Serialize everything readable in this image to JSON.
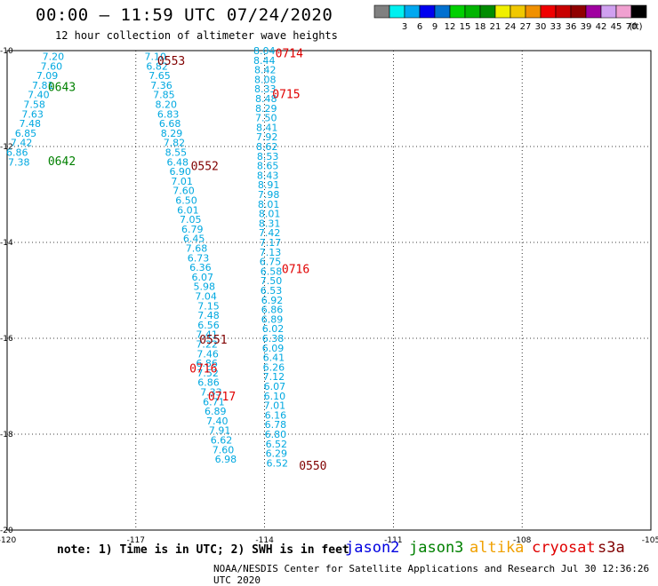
{
  "header": {
    "title": "00:00 – 11:59 UTC 07/24/2020",
    "subtitle": "12 hour collection of altimeter wave heights"
  },
  "legend": {
    "unit": "(ft)",
    "scale": [
      {
        "label": "",
        "color": "#808080"
      },
      {
        "label": "3",
        "color": "#00f0f0"
      },
      {
        "label": "6",
        "color": "#00a8f0"
      },
      {
        "label": "9",
        "color": "#0000f0"
      },
      {
        "label": "12",
        "color": "#0070d0"
      },
      {
        "label": "15",
        "color": "#00d000"
      },
      {
        "label": "18",
        "color": "#00b400"
      },
      {
        "label": "21",
        "color": "#008c00"
      },
      {
        "label": "24",
        "color": "#f0f000"
      },
      {
        "label": "27",
        "color": "#f0c800"
      },
      {
        "label": "30",
        "color": "#f09000"
      },
      {
        "label": "33",
        "color": "#f00000"
      },
      {
        "label": "36",
        "color": "#c80000"
      },
      {
        "label": "39",
        "color": "#900000"
      },
      {
        "label": "42",
        "color": "#a000a0"
      },
      {
        "label": "45",
        "color": "#d0a0f0"
      },
      {
        "label": "70",
        "color": "#f0a0d0"
      },
      {
        "label": "",
        "color": "#000000"
      }
    ]
  },
  "map": {
    "lon_range": [
      -120,
      -105
    ],
    "lat_range": [
      -20,
      -10
    ],
    "x_ticks": [
      {
        "value": -120,
        "label": "-120"
      },
      {
        "value": -117,
        "label": "-117"
      },
      {
        "value": -114,
        "label": "-114"
      },
      {
        "value": -111,
        "label": "-111"
      },
      {
        "value": -108,
        "label": "-108"
      },
      {
        "value": -105,
        "label": "-105"
      }
    ],
    "y_ticks": [
      {
        "value": -10,
        "label": "-10"
      },
      {
        "value": -12,
        "label": "-12"
      },
      {
        "value": -14,
        "label": "-14"
      },
      {
        "value": -16,
        "label": "-16"
      },
      {
        "value": -18,
        "label": "-18"
      },
      {
        "value": -20,
        "label": "-20"
      }
    ],
    "obs_color": "#00a8e0",
    "time_colors": {
      "cryosat": "#e00000",
      "s3a": "#800000",
      "jason3": "#008000"
    },
    "observations": [
      {
        "lon": -119.18,
        "lat": -10.12,
        "value": "7.20"
      },
      {
        "lon": -119.22,
        "lat": -10.32,
        "value": "7.60"
      },
      {
        "lon": -119.32,
        "lat": -10.52,
        "value": "7.09"
      },
      {
        "lon": -119.42,
        "lat": -10.72,
        "value": "7.81"
      },
      {
        "lon": -119.52,
        "lat": -10.92,
        "value": "7.40"
      },
      {
        "lon": -119.62,
        "lat": -11.12,
        "value": "7.58"
      },
      {
        "lon": -119.66,
        "lat": -11.32,
        "value": "7.63"
      },
      {
        "lon": -119.72,
        "lat": -11.52,
        "value": "7.48"
      },
      {
        "lon": -119.82,
        "lat": -11.72,
        "value": "6.85"
      },
      {
        "lon": -119.92,
        "lat": -11.92,
        "value": "7.42"
      },
      {
        "lon": -120.02,
        "lat": -12.12,
        "value": "6.86"
      },
      {
        "lon": -119.98,
        "lat": -12.32,
        "value": "7.38"
      },
      {
        "lon": -116.8,
        "lat": -10.12,
        "value": "7.10"
      },
      {
        "lon": -116.76,
        "lat": -10.32,
        "value": "6.82"
      },
      {
        "lon": -116.7,
        "lat": -10.52,
        "value": "7.65"
      },
      {
        "lon": -116.66,
        "lat": -10.72,
        "value": "7.36"
      },
      {
        "lon": -116.6,
        "lat": -10.92,
        "value": "7.85"
      },
      {
        "lon": -116.55,
        "lat": -11.12,
        "value": "8.20"
      },
      {
        "lon": -116.5,
        "lat": -11.32,
        "value": "6.83"
      },
      {
        "lon": -116.46,
        "lat": -11.52,
        "value": "6.68"
      },
      {
        "lon": -116.42,
        "lat": -11.72,
        "value": "8.29"
      },
      {
        "lon": -116.36,
        "lat": -11.92,
        "value": "7.82"
      },
      {
        "lon": -116.32,
        "lat": -12.12,
        "value": "8.55"
      },
      {
        "lon": -116.28,
        "lat": -12.32,
        "value": "6.48"
      },
      {
        "lon": -116.22,
        "lat": -12.52,
        "value": "6.90"
      },
      {
        "lon": -116.18,
        "lat": -12.72,
        "value": "7.01"
      },
      {
        "lon": -116.14,
        "lat": -12.92,
        "value": "7.60"
      },
      {
        "lon": -116.08,
        "lat": -13.12,
        "value": "6.50"
      },
      {
        "lon": -116.04,
        "lat": -13.32,
        "value": "6.01"
      },
      {
        "lon": -115.98,
        "lat": -13.52,
        "value": "7.05"
      },
      {
        "lon": -115.94,
        "lat": -13.72,
        "value": "6.79"
      },
      {
        "lon": -115.9,
        "lat": -13.92,
        "value": "6.45"
      },
      {
        "lon": -115.84,
        "lat": -14.12,
        "value": "7.68"
      },
      {
        "lon": -115.8,
        "lat": -14.32,
        "value": "6.73"
      },
      {
        "lon": -115.75,
        "lat": -14.52,
        "value": "6.36"
      },
      {
        "lon": -115.7,
        "lat": -14.72,
        "value": "6.07"
      },
      {
        "lon": -115.66,
        "lat": -14.92,
        "value": "5.98"
      },
      {
        "lon": -115.62,
        "lat": -15.12,
        "value": "7.04"
      },
      {
        "lon": -115.56,
        "lat": -15.32,
        "value": "7.15"
      },
      {
        "lon": -115.56,
        "lat": -15.52,
        "value": "7.48"
      },
      {
        "lon": -115.56,
        "lat": -15.72,
        "value": "6.56"
      },
      {
        "lon": -115.6,
        "lat": -15.92,
        "value": "7.41"
      },
      {
        "lon": -115.6,
        "lat": -16.12,
        "value": "7.22"
      },
      {
        "lon": -115.58,
        "lat": -16.32,
        "value": "7.46"
      },
      {
        "lon": -115.6,
        "lat": -16.52,
        "value": "6.86"
      },
      {
        "lon": -115.58,
        "lat": -16.72,
        "value": "7.52"
      },
      {
        "lon": -115.56,
        "lat": -16.92,
        "value": "6.86"
      },
      {
        "lon": -115.5,
        "lat": -17.12,
        "value": "7.33"
      },
      {
        "lon": -115.44,
        "lat": -17.32,
        "value": "6.71"
      },
      {
        "lon": -115.4,
        "lat": -17.52,
        "value": "6.89"
      },
      {
        "lon": -115.36,
        "lat": -17.72,
        "value": "7.40"
      },
      {
        "lon": -115.3,
        "lat": -17.92,
        "value": "7.91"
      },
      {
        "lon": -115.26,
        "lat": -18.12,
        "value": "6.62"
      },
      {
        "lon": -115.22,
        "lat": -18.32,
        "value": "7.60"
      },
      {
        "lon": -115.16,
        "lat": -18.52,
        "value": "6.98"
      },
      {
        "lon": -114.26,
        "lat": -10.0,
        "value": "8.04"
      },
      {
        "lon": -114.26,
        "lat": -10.2,
        "value": "8.44"
      },
      {
        "lon": -114.24,
        "lat": -10.4,
        "value": "8.42"
      },
      {
        "lon": -114.24,
        "lat": -10.6,
        "value": "8.08"
      },
      {
        "lon": -114.24,
        "lat": -10.8,
        "value": "8.33"
      },
      {
        "lon": -114.22,
        "lat": -11.0,
        "value": "8.48"
      },
      {
        "lon": -114.22,
        "lat": -11.2,
        "value": "8.29"
      },
      {
        "lon": -114.22,
        "lat": -11.4,
        "value": "7.50"
      },
      {
        "lon": -114.2,
        "lat": -11.6,
        "value": "8.41"
      },
      {
        "lon": -114.2,
        "lat": -11.8,
        "value": "7.92"
      },
      {
        "lon": -114.2,
        "lat": -12.0,
        "value": "8.62"
      },
      {
        "lon": -114.18,
        "lat": -12.2,
        "value": "8.53"
      },
      {
        "lon": -114.18,
        "lat": -12.4,
        "value": "8.65"
      },
      {
        "lon": -114.18,
        "lat": -12.6,
        "value": "8.43"
      },
      {
        "lon": -114.16,
        "lat": -12.8,
        "value": "8.91"
      },
      {
        "lon": -114.16,
        "lat": -13.0,
        "value": "7.98"
      },
      {
        "lon": -114.16,
        "lat": -13.2,
        "value": "8.01"
      },
      {
        "lon": -114.14,
        "lat": -13.4,
        "value": "8.01"
      },
      {
        "lon": -114.14,
        "lat": -13.6,
        "value": "8.31"
      },
      {
        "lon": -114.14,
        "lat": -13.8,
        "value": "7.42"
      },
      {
        "lon": -114.12,
        "lat": -14.0,
        "value": "7.17"
      },
      {
        "lon": -114.12,
        "lat": -14.2,
        "value": "7.13"
      },
      {
        "lon": -114.12,
        "lat": -14.4,
        "value": "6.75"
      },
      {
        "lon": -114.1,
        "lat": -14.6,
        "value": "6.58"
      },
      {
        "lon": -114.1,
        "lat": -14.8,
        "value": "7.50"
      },
      {
        "lon": -114.1,
        "lat": -15.0,
        "value": "6.53"
      },
      {
        "lon": -114.08,
        "lat": -15.2,
        "value": "6.92"
      },
      {
        "lon": -114.08,
        "lat": -15.4,
        "value": "6.86"
      },
      {
        "lon": -114.08,
        "lat": -15.6,
        "value": "6.89"
      },
      {
        "lon": -114.06,
        "lat": -15.8,
        "value": "6.02"
      },
      {
        "lon": -114.06,
        "lat": -16.0,
        "value": "6.38"
      },
      {
        "lon": -114.06,
        "lat": -16.2,
        "value": "6.09"
      },
      {
        "lon": -114.04,
        "lat": -16.4,
        "value": "6.41"
      },
      {
        "lon": -114.04,
        "lat": -16.6,
        "value": "6.26"
      },
      {
        "lon": -114.04,
        "lat": -16.8,
        "value": "7.12"
      },
      {
        "lon": -114.02,
        "lat": -17.0,
        "value": "6.07"
      },
      {
        "lon": -114.02,
        "lat": -17.2,
        "value": "6.10"
      },
      {
        "lon": -114.02,
        "lat": -17.4,
        "value": "7.01"
      },
      {
        "lon": -114.0,
        "lat": -17.6,
        "value": "6.16"
      },
      {
        "lon": -114.0,
        "lat": -17.8,
        "value": "6.78"
      },
      {
        "lon": -114.0,
        "lat": -18.0,
        "value": "6.80"
      },
      {
        "lon": -113.98,
        "lat": -18.2,
        "value": "6.52"
      },
      {
        "lon": -113.98,
        "lat": -18.4,
        "value": "6.29"
      },
      {
        "lon": -113.96,
        "lat": -18.6,
        "value": "6.52"
      }
    ],
    "time_labels": [
      {
        "lon": -116.5,
        "lat": -10.2,
        "text": "0553",
        "sat": "s3a"
      },
      {
        "lon": -119.05,
        "lat": -10.75,
        "text": "0643",
        "sat": "jason3"
      },
      {
        "lon": -119.05,
        "lat": -12.3,
        "text": "0642",
        "sat": "jason3"
      },
      {
        "lon": -115.72,
        "lat": -12.4,
        "text": "0552",
        "sat": "s3a"
      },
      {
        "lon": -115.52,
        "lat": -16.02,
        "text": "0551",
        "sat": "s3a"
      },
      {
        "lon": -113.2,
        "lat": -18.65,
        "text": "0550",
        "sat": "s3a"
      },
      {
        "lon": -113.75,
        "lat": -10.05,
        "text": "0714",
        "sat": "cryosat"
      },
      {
        "lon": -113.82,
        "lat": -10.9,
        "text": "0715",
        "sat": "cryosat"
      },
      {
        "lon": -113.6,
        "lat": -14.55,
        "text": "0716",
        "sat": "cryosat"
      },
      {
        "lon": -115.75,
        "lat": -16.62,
        "text": "0716",
        "sat": "cryosat"
      },
      {
        "lon": -115.32,
        "lat": -17.2,
        "text": "0717",
        "sat": "cryosat"
      }
    ]
  },
  "satellites": [
    {
      "name": "jason2",
      "color": "#0000e0"
    },
    {
      "name": "jason3",
      "color": "#008000"
    },
    {
      "name": "altika",
      "color": "#f0a000"
    },
    {
      "name": "cryosat",
      "color": "#e00000"
    },
    {
      "name": "s3a",
      "color": "#800000"
    }
  ],
  "footer": {
    "note": "note: 1) Time is in UTC; 2) SWH is in feet",
    "credit": "NOAA/NESDIS Center for Satellite Applications and Research   Jul 30 12:36:26 UTC 2020"
  }
}
